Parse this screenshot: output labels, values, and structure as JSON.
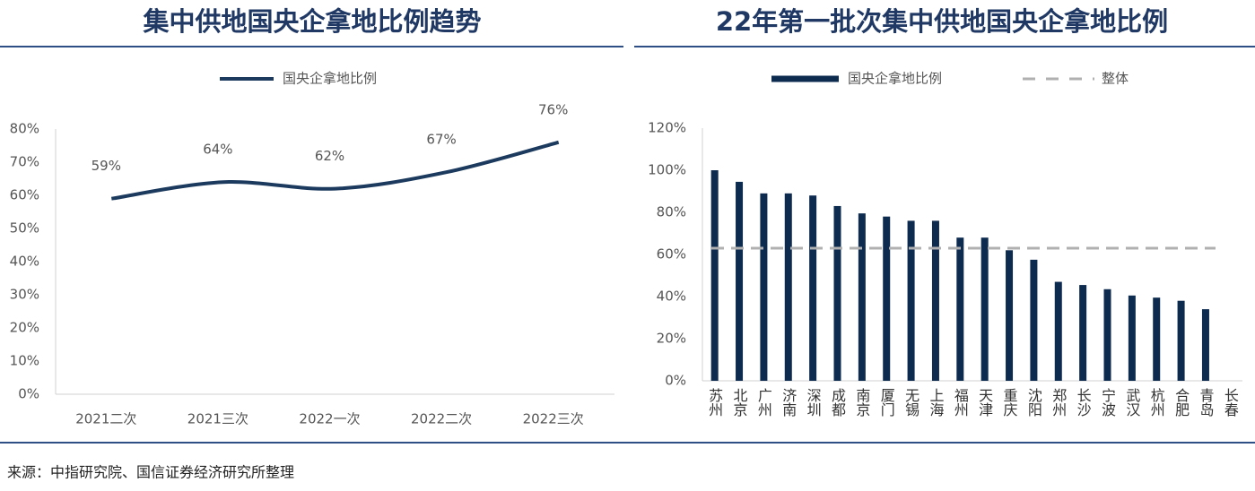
{
  "chart_data": [
    {
      "type": "line",
      "title": "集中供地国央企拿地比例趋势",
      "categories": [
        "2021二次",
        "2021三次",
        "2022一次",
        "2022二次",
        "2022三次"
      ],
      "series": [
        {
          "name": "国央企拿地比例",
          "color": "#1b3a5e",
          "values": [
            59,
            64,
            62,
            67,
            76
          ],
          "value_labels": [
            "59%",
            "64%",
            "62%",
            "67%",
            "76%"
          ]
        }
      ],
      "ylim": [
        0,
        80
      ],
      "yticks": [
        {
          "value": 0,
          "label": "0%"
        },
        {
          "value": 10,
          "label": "10%"
        },
        {
          "value": 20,
          "label": "20%"
        },
        {
          "value": 30,
          "label": "30%"
        },
        {
          "value": 40,
          "label": "40%"
        },
        {
          "value": 50,
          "label": "50%"
        },
        {
          "value": 60,
          "label": "60%"
        },
        {
          "value": 70,
          "label": "70%"
        },
        {
          "value": 80,
          "label": "80%"
        }
      ],
      "legend": "top"
    },
    {
      "type": "bar",
      "title": "22年第一批次集中供地国央企拿地比例",
      "categories": [
        "苏州",
        "北京",
        "广州",
        "济南",
        "深圳",
        "成都",
        "南京",
        "厦门",
        "无锡",
        "上海",
        "福州",
        "天津",
        "重庆",
        "沈阳",
        "郑州",
        "长沙",
        "宁波",
        "武汉",
        "杭州",
        "合肥",
        "青岛",
        "长春"
      ],
      "series": [
        {
          "name": "国央企拿地比例",
          "color": "#0d2a4f",
          "values": [
            100,
            94.5,
            89,
            89,
            88,
            83,
            79.5,
            78,
            76,
            76,
            68,
            68,
            62,
            57.5,
            47,
            45.5,
            43.5,
            40.5,
            39.5,
            38,
            34,
            0
          ]
        }
      ],
      "reference_line": {
        "name": "整体",
        "value": 63,
        "color": "#b0b0b0",
        "style": "dashed"
      },
      "ylim": [
        0,
        120
      ],
      "yticks": [
        {
          "value": 0,
          "label": "0%"
        },
        {
          "value": 20,
          "label": "20%"
        },
        {
          "value": 40,
          "label": "40%"
        },
        {
          "value": 60,
          "label": "60%"
        },
        {
          "value": 80,
          "label": "80%"
        },
        {
          "value": 100,
          "label": "100%"
        },
        {
          "value": 120,
          "label": "120%"
        }
      ],
      "legend": "top"
    }
  ],
  "source": "来源：中指研究院、国信证券经济研究所整理"
}
